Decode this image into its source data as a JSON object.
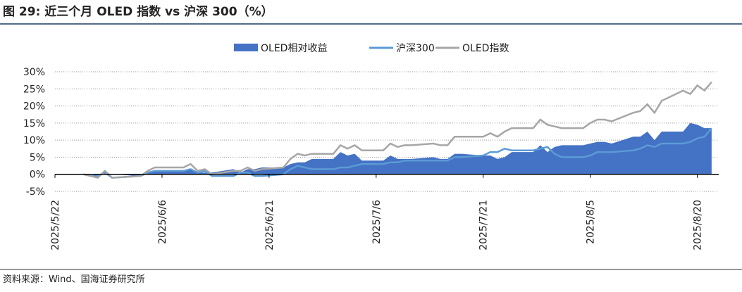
{
  "header": {
    "title": "图 29:  近三个月 OLED 指数 vs 沪深 300（%）"
  },
  "chart_data": {
    "type": "area-line",
    "x": [
      "2025-05-26",
      "2025-05-27",
      "2025-05-28",
      "2025-05-29",
      "2025-05-30",
      "2025-06-03",
      "2025-06-04",
      "2025-06-05",
      "2025-06-06",
      "2025-06-09",
      "2025-06-10",
      "2025-06-11",
      "2025-06-12",
      "2025-06-13",
      "2025-06-16",
      "2025-06-17",
      "2025-06-18",
      "2025-06-19",
      "2025-06-20",
      "2025-06-23",
      "2025-06-24",
      "2025-06-25",
      "2025-06-26",
      "2025-06-27",
      "2025-06-30",
      "2025-07-01",
      "2025-07-02",
      "2025-07-03",
      "2025-07-04",
      "2025-07-07",
      "2025-07-08",
      "2025-07-09",
      "2025-07-10",
      "2025-07-11",
      "2025-07-14",
      "2025-07-15",
      "2025-07-16",
      "2025-07-17",
      "2025-07-18",
      "2025-07-21",
      "2025-07-22",
      "2025-07-23",
      "2025-07-24",
      "2025-07-25",
      "2025-07-28",
      "2025-07-29",
      "2025-07-30",
      "2025-07-31",
      "2025-08-01",
      "2025-08-04",
      "2025-08-05",
      "2025-08-06",
      "2025-08-07",
      "2025-08-08",
      "2025-08-11",
      "2025-08-12",
      "2025-08-13",
      "2025-08-14",
      "2025-08-15",
      "2025-08-18",
      "2025-08-19",
      "2025-08-20",
      "2025-08-21",
      "2025-08-22"
    ],
    "series": [
      {
        "name": "OLED相对收益",
        "kind": "area",
        "color": "#4472c4",
        "values": [
          0,
          0,
          -0.5,
          0.5,
          0,
          -0.5,
          0.5,
          1,
          1,
          1,
          1.5,
          0.5,
          0.5,
          0.5,
          1.5,
          0.5,
          1.5,
          1.5,
          2,
          2,
          3,
          3.5,
          3.5,
          4.5,
          4.5,
          6.5,
          5.5,
          6,
          4,
          4,
          5.5,
          4.5,
          4.5,
          4.5,
          5,
          4.5,
          4.5,
          6,
          6,
          5.5,
          5.5,
          4.5,
          5,
          6.5,
          6.5,
          8.5,
          6.5,
          8,
          8.5,
          8.5,
          9,
          9.5,
          9.5,
          9,
          11,
          11,
          12.5,
          10,
          12.5,
          12.5,
          15,
          14.5,
          13.5,
          13.5
        ]
      },
      {
        "name": "沪深300",
        "kind": "line",
        "color": "#5b9bd5",
        "values": [
          0,
          -0.5,
          -0.5,
          0.5,
          -1,
          -0.5,
          0.5,
          1,
          1,
          1,
          1.5,
          0.5,
          1,
          -0.5,
          -0.5,
          0.5,
          0.5,
          -0.5,
          -0.5,
          0,
          1.5,
          2.5,
          2,
          1.5,
          1.5,
          2,
          2,
          2.5,
          3,
          3,
          3.5,
          3.5,
          4,
          4,
          4,
          4,
          4,
          5,
          5,
          5.5,
          6.5,
          6.5,
          7.5,
          7,
          7,
          7.5,
          8,
          6,
          5,
          5,
          5.5,
          6.5,
          6.5,
          6.5,
          7,
          7.5,
          8.5,
          8,
          9,
          9,
          9.5,
          10.5,
          11,
          13.5
        ]
      },
      {
        "name": "OLED指数",
        "kind": "line",
        "color": "#a6a6a6",
        "values": [
          0,
          -0.5,
          -1,
          1,
          -1,
          -0.5,
          1,
          2,
          2,
          2,
          3,
          1,
          1.5,
          0,
          1,
          1,
          2,
          1,
          1.5,
          2,
          4.5,
          6,
          5.5,
          6,
          6,
          8.5,
          7.5,
          8.5,
          7,
          7,
          9,
          8,
          8.5,
          8.5,
          9,
          8.5,
          8.5,
          11,
          11,
          11,
          12,
          11,
          12.5,
          13.5,
          13.5,
          16,
          14.5,
          14,
          13.5,
          13.5,
          15,
          16,
          16,
          15.5,
          18,
          18.5,
          20.5,
          18,
          21.5,
          24.5,
          23.5,
          26,
          24.5,
          27
        ]
      }
    ],
    "xlim": [
      "2025-05-22",
      "2025-08-23"
    ],
    "xticks": [
      {
        "value": "2025-05-22",
        "label": "2025/5/22"
      },
      {
        "value": "2025-06-06",
        "label": "2025/6/6"
      },
      {
        "value": "2025-06-21",
        "label": "2025/6/21"
      },
      {
        "value": "2025-07-06",
        "label": "2025/7/6"
      },
      {
        "value": "2025-07-21",
        "label": "2025/7/21"
      },
      {
        "value": "2025-08-05",
        "label": "2025/8/5"
      },
      {
        "value": "2025-08-20",
        "label": "2025/8/20"
      }
    ],
    "ylim": [
      -5,
      30
    ],
    "yticks": [
      {
        "value": -5,
        "label": "-5%"
      },
      {
        "value": 0,
        "label": "0%"
      },
      {
        "value": 5,
        "label": "5%"
      },
      {
        "value": 10,
        "label": "10%"
      },
      {
        "value": 15,
        "label": "15%"
      },
      {
        "value": 20,
        "label": "20%"
      },
      {
        "value": 25,
        "label": "25%"
      },
      {
        "value": 30,
        "label": "30%"
      }
    ],
    "grid": true,
    "legend": "top"
  },
  "footer": {
    "source": "资料来源：Wind、国海证券研究所"
  }
}
